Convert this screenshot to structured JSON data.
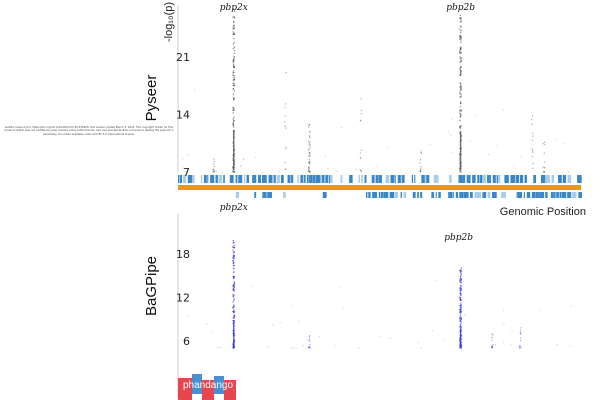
{
  "preprint_notice": "bioRxiv preprint doi: https://doi.org/10.1101/2023.03.30.534925; this version posted March 3, 2023. The copyright holder for this preprint (which was not certified by peer review) is the author/funder, who has granted bioRxiv a license to display the preprint in perpetuity. It is made available under aCC-BY 4.0 International license.",
  "logo": {
    "text": "phandango",
    "colors": [
      "#e8464f",
      "#4a8fd0"
    ]
  },
  "colors": {
    "pyseer_points": "#555555",
    "bagpipe_points": "#3a3adc",
    "gene_blue": "#3b86c6",
    "reference_orange": "#e59a10",
    "gridline": "#dddddd"
  },
  "chart_data": [
    {
      "type": "scatter",
      "title": "Pyseer",
      "ylabel": "-log₁₀(p)",
      "xlabel": "",
      "yticks": [
        "21",
        "14",
        "7"
      ],
      "ytick_values": [
        21,
        14,
        7
      ],
      "ylim": [
        7,
        27
      ],
      "xlim": [
        0,
        1
      ],
      "grid": false,
      "annotations": [
        "pbp2x",
        "pbp2b"
      ],
      "annotation_x": [
        0.13,
        0.7
      ],
      "columns": [
        {
          "x": 0.13,
          "ymax": 27,
          "density": "high"
        },
        {
          "x": 0.7,
          "ymax": 27,
          "density": "high"
        },
        {
          "x": 0.32,
          "ymax": 13,
          "density": "medium"
        },
        {
          "x": 0.26,
          "ymax": 21,
          "density": "low"
        },
        {
          "x": 0.45,
          "ymax": 16,
          "density": "low"
        },
        {
          "x": 0.6,
          "ymax": 12,
          "density": "low"
        },
        {
          "x": 0.88,
          "ymax": 15,
          "density": "low"
        },
        {
          "x": 0.91,
          "ymax": 11,
          "density": "low"
        },
        {
          "x": 0.08,
          "ymax": 9,
          "density": "low"
        }
      ]
    },
    {
      "type": "scatter",
      "title": "BaGPipe",
      "ylabel": "",
      "xlabel": "Genomic Position",
      "yticks": [
        "18",
        "12",
        "6"
      ],
      "ytick_values": [
        18,
        12,
        6
      ],
      "ylim": [
        5,
        21
      ],
      "xlim": [
        0,
        1
      ],
      "grid": false,
      "annotations": [
        "pbp2x",
        "pbp2b"
      ],
      "annotation_x": [
        0.13,
        0.7
      ],
      "columns": [
        {
          "x": 0.13,
          "ymax": 20,
          "density": "high"
        },
        {
          "x": 0.7,
          "ymax": 16,
          "density": "high"
        },
        {
          "x": 0.32,
          "ymax": 8,
          "density": "low"
        },
        {
          "x": 0.85,
          "ymax": 8,
          "density": "low"
        },
        {
          "x": 0.78,
          "ymax": 7,
          "density": "low"
        }
      ]
    }
  ]
}
